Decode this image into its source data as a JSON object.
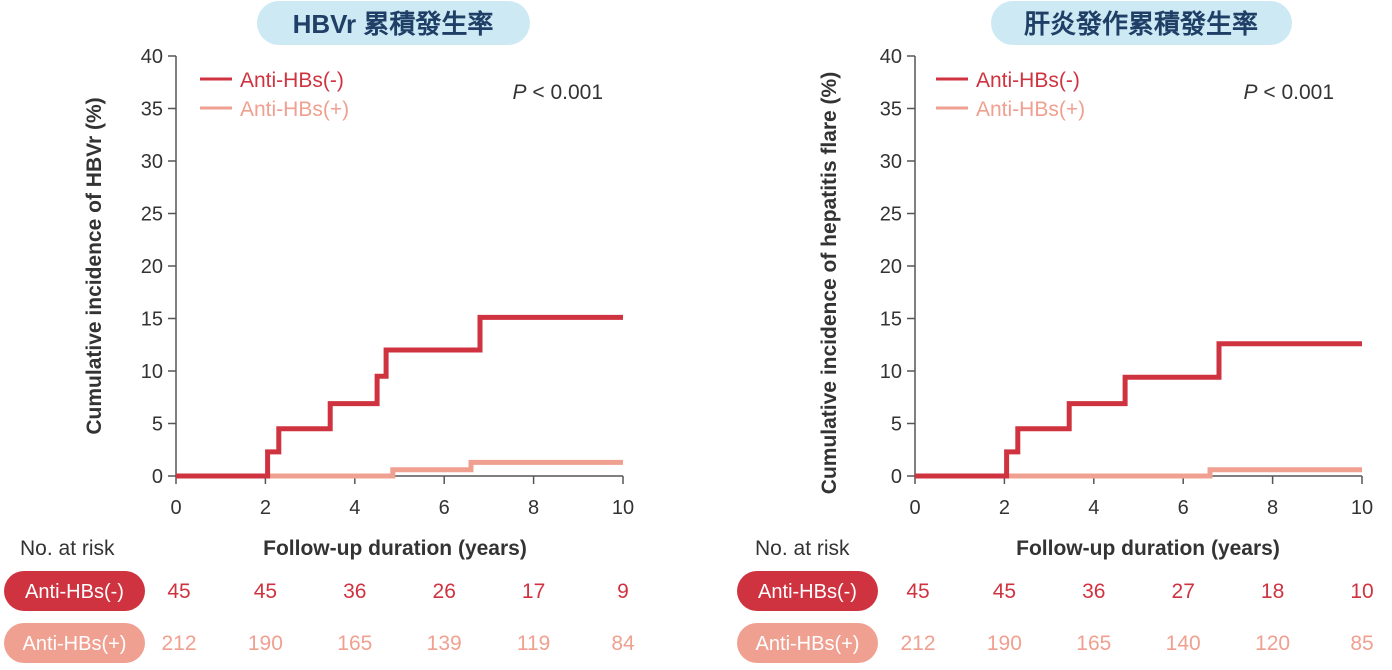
{
  "risk_label": "No. at risk",
  "colors": {
    "neg": "#cf3340",
    "pos": "#f0a090",
    "title_bg": "#cde9f4",
    "title_text": "#1f3f66",
    "axis": "#555555",
    "text": "#333333"
  },
  "chart_data": [
    {
      "type": "line",
      "title": "HBVr 累積發生率",
      "xlabel": "Follow-up duration (years)",
      "ylabel": "Cumulative incidence of HBVr (%)",
      "xlim": [
        0,
        10
      ],
      "ylim": [
        0,
        40
      ],
      "xticks": [
        0,
        2,
        4,
        6,
        8,
        10
      ],
      "yticks": [
        0,
        5,
        10,
        15,
        20,
        25,
        30,
        35,
        40
      ],
      "grid": false,
      "legend_position": "top-left",
      "annotation": {
        "italic": "P",
        "text": " < 0.001"
      },
      "step": true,
      "series": [
        {
          "name": "Anti-HBs(-)",
          "color": "#cf3340",
          "x": [
            0,
            2,
            2.05,
            2.3,
            3.45,
            4.5,
            4.7,
            6.8,
            10
          ],
          "y": [
            0,
            0,
            2.3,
            4.5,
            6.9,
            9.5,
            12,
            15.1,
            15.1
          ]
        },
        {
          "name": "Anti-HBs(+)",
          "color": "#f0a090",
          "x": [
            2,
            4.85,
            6.6,
            10
          ],
          "y": [
            0,
            0.6,
            1.3,
            1.3
          ]
        }
      ],
      "at_risk": [
        {
          "label": "Anti-HBs(-)",
          "values": [
            "45",
            "45",
            "36",
            "26",
            "17",
            "9"
          ]
        },
        {
          "label": "Anti-HBs(+)",
          "values": [
            "212",
            "190",
            "165",
            "139",
            "119",
            "84"
          ]
        }
      ]
    },
    {
      "type": "line",
      "title": "肝炎發作累積發生率",
      "xlabel": "Follow-up duration (years)",
      "ylabel": "Cumulative incidence of hepatitis flare (%)",
      "xlim": [
        0,
        10
      ],
      "ylim": [
        0,
        40
      ],
      "xticks": [
        0,
        2,
        4,
        6,
        8,
        10
      ],
      "yticks": [
        0,
        5,
        10,
        15,
        20,
        25,
        30,
        35,
        40
      ],
      "grid": false,
      "legend_position": "top-left",
      "annotation": {
        "italic": "P",
        "text": " < 0.001"
      },
      "step": true,
      "series": [
        {
          "name": "Anti-HBs(-)",
          "color": "#cf3340",
          "x": [
            0,
            2,
            2.05,
            2.3,
            3.45,
            4.7,
            6.8,
            10
          ],
          "y": [
            0,
            0,
            2.3,
            4.5,
            6.9,
            9.4,
            12.6,
            12.6
          ]
        },
        {
          "name": "Anti-HBs(+)",
          "color": "#f0a090",
          "x": [
            2,
            6.6,
            10
          ],
          "y": [
            0,
            0.6,
            0.6
          ]
        }
      ],
      "at_risk": [
        {
          "label": "Anti-HBs(-)",
          "values": [
            "45",
            "45",
            "36",
            "27",
            "18",
            "10"
          ]
        },
        {
          "label": "Anti-HBs(+)",
          "values": [
            "212",
            "190",
            "165",
            "140",
            "120",
            "85"
          ]
        }
      ]
    }
  ]
}
